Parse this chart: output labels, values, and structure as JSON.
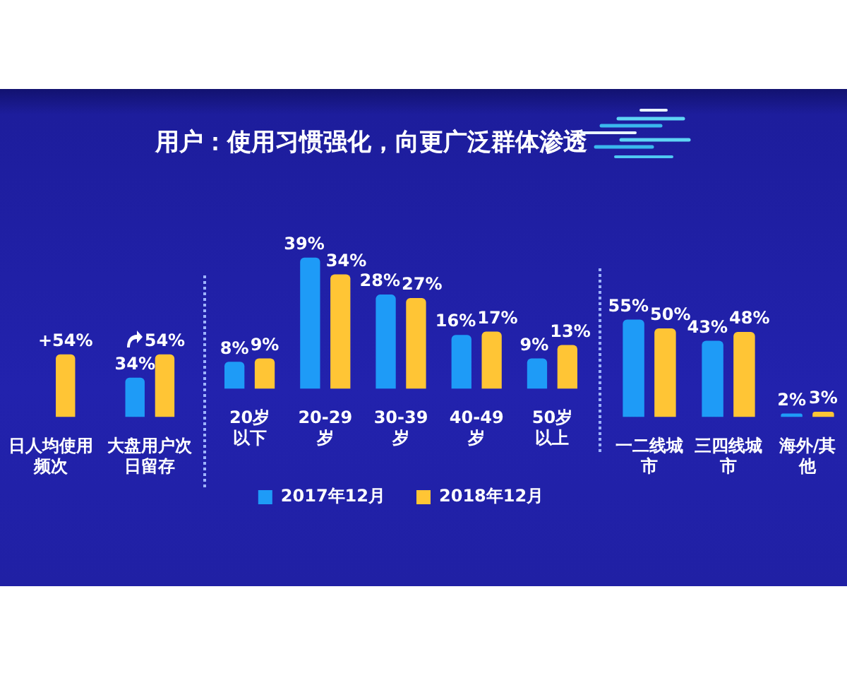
{
  "chart_data": [
    {
      "type": "bar",
      "categories": [
        "日人均使用频次",
        "大盘用户次日留存"
      ],
      "series": [
        {
          "color": "#1e9bf7",
          "values": [
            null,
            34
          ],
          "value_labels": [
            null,
            "34%"
          ]
        },
        {
          "color": "#ffc535",
          "values": [
            54,
            54
          ],
          "value_labels": [
            "+54%",
            "54%"
          ]
        }
      ]
    },
    {
      "type": "bar",
      "title": "用户：使用习惯强化，向更广泛群体渗透",
      "categories": [
        "20岁以下",
        "20-29岁",
        "30-39岁",
        "40-49岁",
        "50岁以上"
      ],
      "series": [
        {
          "name": "2017年12月",
          "color": "#1e9bf7",
          "values": [
            8,
            39,
            28,
            16,
            9
          ],
          "value_labels": [
            "8%",
            "39%",
            "28%",
            "16%",
            "9%"
          ]
        },
        {
          "name": "2018年12月",
          "color": "#ffc535",
          "values": [
            9,
            34,
            27,
            17,
            13
          ],
          "value_labels": [
            "9%",
            "34%",
            "27%",
            "17%",
            "13%"
          ]
        }
      ],
      "legend": "bottom"
    },
    {
      "type": "bar",
      "categories": [
        "一二线城市",
        "三四线城市",
        "海外/其他"
      ],
      "series": [
        {
          "color": "#1e9bf7",
          "values": [
            55,
            43,
            2
          ],
          "value_labels": [
            "55%",
            "43%",
            "2%"
          ]
        },
        {
          "color": "#ffc535",
          "values": [
            50,
            48,
            3
          ],
          "value_labels": [
            "50%",
            "48%",
            "3%"
          ]
        }
      ]
    }
  ]
}
